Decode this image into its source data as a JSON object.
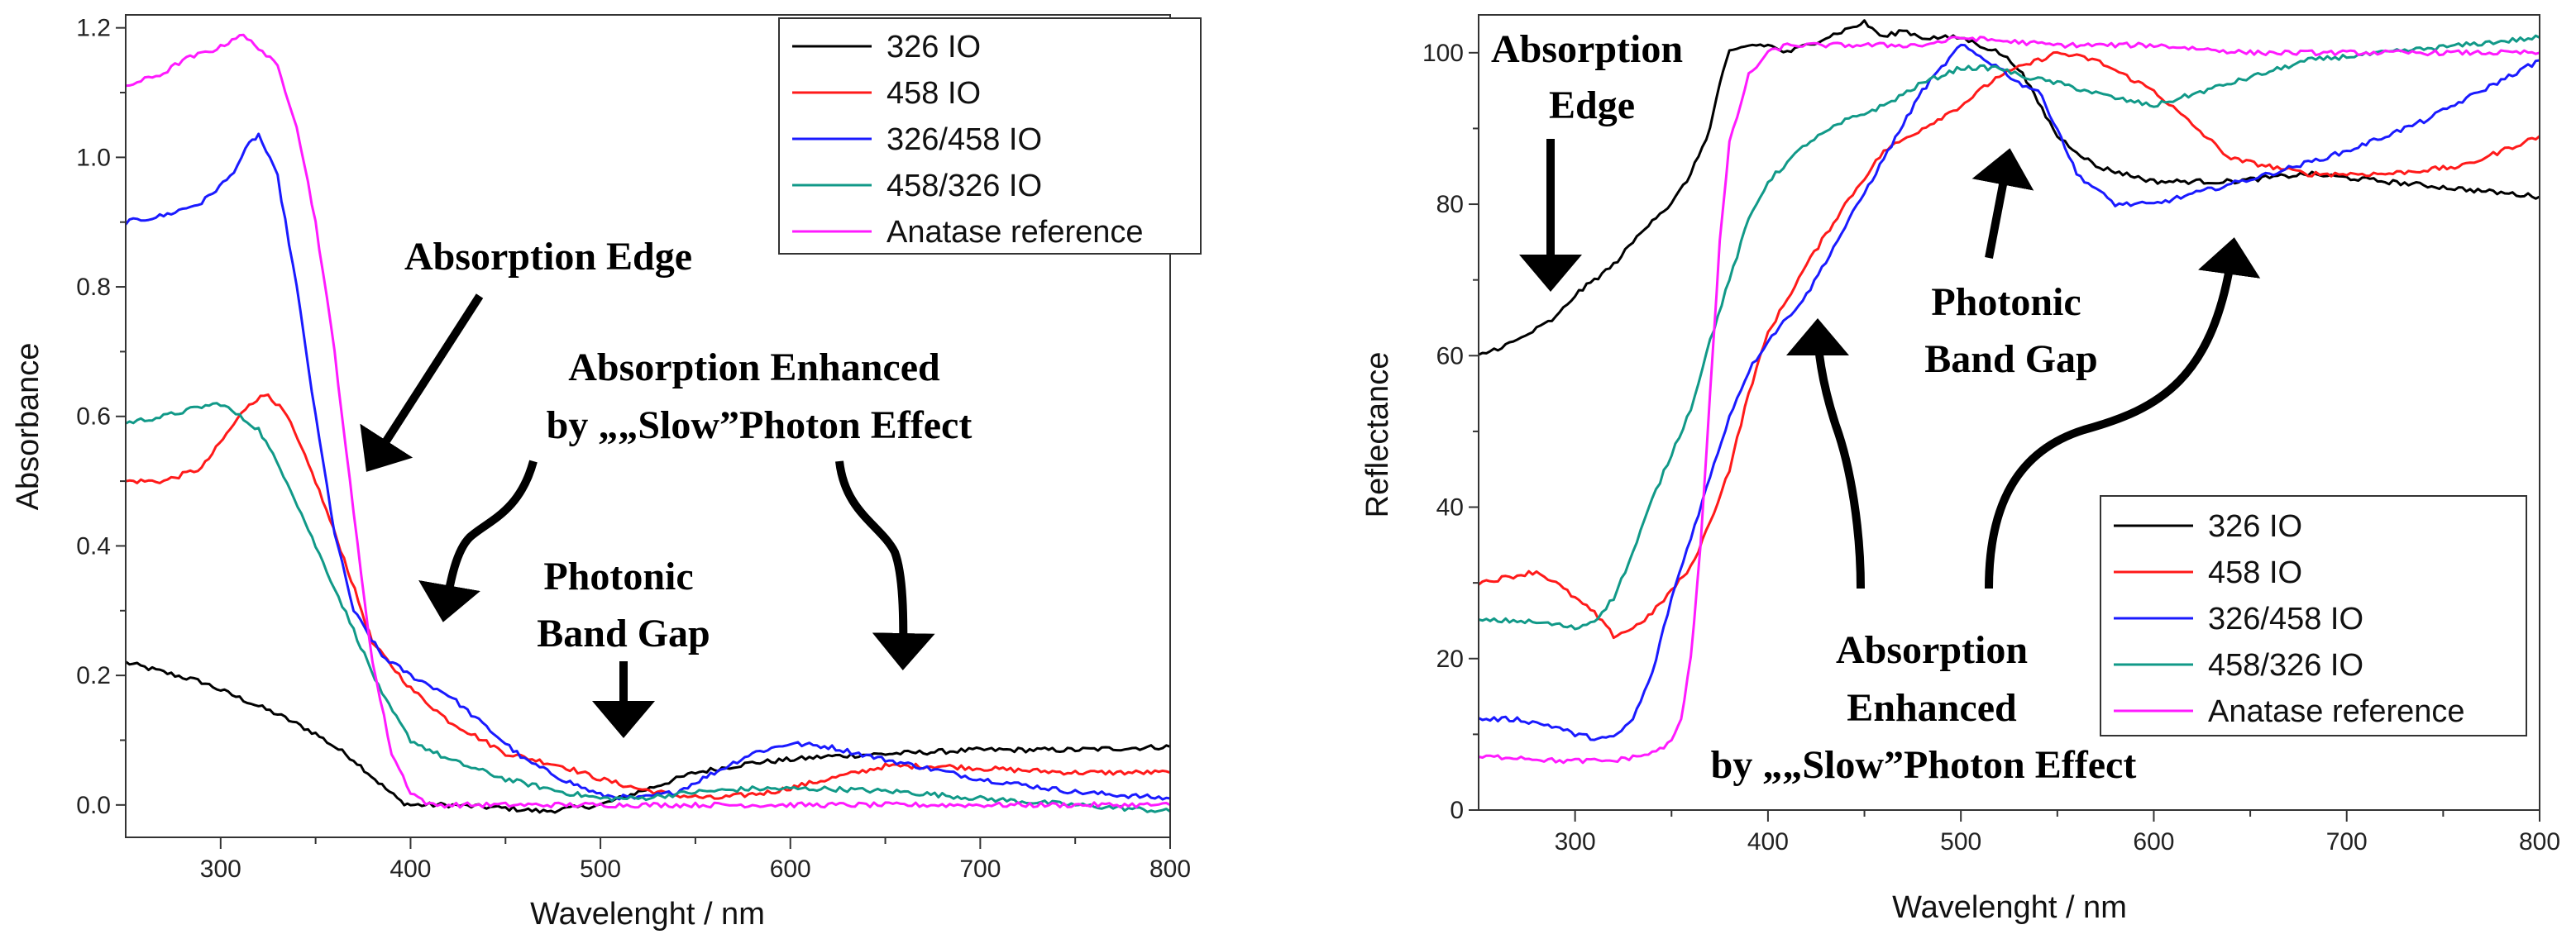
{
  "chart_data": [
    {
      "type": "line",
      "title": "",
      "xlabel": "Wavelenght / nm",
      "ylabel": "Absorbance",
      "xlim": [
        250,
        800
      ],
      "ylim": [
        -0.05,
        1.22
      ],
      "xticks": [
        300,
        400,
        500,
        600,
        700,
        800
      ],
      "yticks": [
        0.0,
        0.2,
        0.4,
        0.6,
        0.8,
        1.0,
        1.2
      ],
      "ytick_labels": [
        "0.0",
        "0.2",
        "0.4",
        "0.6",
        "0.8",
        "1.0",
        "1.2"
      ],
      "grid": false,
      "legend_position": "top-right",
      "series": [
        {
          "name": "326 IO",
          "color": "#000000",
          "x": [
            250,
            270,
            290,
            310,
            330,
            350,
            370,
            385,
            395,
            400,
            420,
            450,
            470,
            500,
            510,
            530,
            550,
            580,
            620,
            660,
            700,
            750,
            800
          ],
          "y": [
            0.22,
            0.205,
            0.19,
            0.165,
            0.14,
            0.11,
            0.07,
            0.03,
            0.005,
            0.0,
            0.0,
            -0.005,
            -0.01,
            0.0,
            0.01,
            0.03,
            0.05,
            0.065,
            0.075,
            0.08,
            0.085,
            0.085,
            0.09
          ]
        },
        {
          "name": "458 IO",
          "color": "#ff1a1a",
          "x": [
            250,
            270,
            290,
            305,
            315,
            325,
            335,
            350,
            365,
            380,
            400,
            420,
            450,
            480,
            500,
            520,
            540,
            560,
            590,
            620,
            650,
            680,
            710,
            750,
            800
          ],
          "y": [
            0.5,
            0.5,
            0.52,
            0.58,
            0.62,
            0.635,
            0.6,
            0.5,
            0.38,
            0.25,
            0.18,
            0.13,
            0.08,
            0.06,
            0.04,
            0.025,
            0.015,
            0.01,
            0.02,
            0.04,
            0.06,
            0.06,
            0.055,
            0.05,
            0.05
          ]
        },
        {
          "name": "326/458 IO",
          "color": "#1a1aff",
          "x": [
            250,
            270,
            290,
            305,
            315,
            320,
            330,
            340,
            350,
            360,
            370,
            385,
            400,
            420,
            440,
            460,
            480,
            500,
            520,
            540,
            560,
            580,
            600,
            620,
            650,
            700,
            750,
            800
          ],
          "y": [
            0.9,
            0.91,
            0.93,
            0.97,
            1.02,
            1.035,
            0.97,
            0.8,
            0.6,
            0.42,
            0.3,
            0.23,
            0.2,
            0.17,
            0.12,
            0.07,
            0.04,
            0.015,
            0.01,
            0.02,
            0.05,
            0.08,
            0.095,
            0.09,
            0.07,
            0.04,
            0.02,
            0.01
          ]
        },
        {
          "name": "458/326 IO",
          "color": "#119988",
          "x": [
            250,
            270,
            290,
            300,
            320,
            335,
            350,
            370,
            385,
            400,
            420,
            450,
            480,
            500,
            520,
            550,
            580,
            620,
            660,
            700,
            750,
            800
          ],
          "y": [
            0.59,
            0.6,
            0.615,
            0.62,
            0.58,
            0.5,
            0.4,
            0.27,
            0.17,
            0.1,
            0.07,
            0.04,
            0.02,
            0.01,
            0.01,
            0.02,
            0.025,
            0.025,
            0.02,
            0.01,
            0.0,
            -0.01
          ]
        },
        {
          "name": "Anatase reference",
          "color": "#ff1aff",
          "x": [
            250,
            260,
            270,
            280,
            290,
            300,
            310,
            320,
            330,
            340,
            350,
            360,
            370,
            380,
            390,
            400,
            410,
            430,
            460,
            500,
            550,
            600,
            650,
            700,
            750,
            800
          ],
          "y": [
            1.11,
            1.12,
            1.13,
            1.15,
            1.16,
            1.17,
            1.19,
            1.17,
            1.14,
            1.05,
            0.9,
            0.7,
            0.45,
            0.22,
            0.08,
            0.02,
            0.0,
            0.0,
            0.0,
            0.0,
            0.0,
            0.0,
            0.0,
            0.0,
            0.0,
            0.0
          ]
        }
      ],
      "annotations": [
        {
          "lines": [
            "Absorption Edge"
          ]
        },
        {
          "lines": [
            "Absorption Enhanced",
            "by „„Slow”Photon Effect"
          ]
        },
        {
          "lines": [
            "Photonic",
            "Band Gap"
          ]
        }
      ]
    },
    {
      "type": "line",
      "title": "",
      "xlabel": "Wavelenght / nm",
      "ylabel": "Reflectance",
      "xlim": [
        250,
        800
      ],
      "ylim": [
        0,
        105
      ],
      "xticks": [
        300,
        400,
        500,
        600,
        700,
        800
      ],
      "yticks": [
        0,
        20,
        40,
        60,
        80,
        100
      ],
      "ytick_labels": [
        "0",
        "20",
        "40",
        "60",
        "80",
        "100"
      ],
      "grid": false,
      "legend_position": "bottom-right",
      "series": [
        {
          "name": "326 IO",
          "color": "#000000",
          "x": [
            250,
            270,
            290,
            300,
            320,
            340,
            350,
            360,
            370,
            375,
            380,
            390,
            400,
            410,
            420,
            440,
            450,
            460,
            470,
            480,
            500,
            520,
            530,
            550,
            570,
            600,
            640,
            680,
            720,
            760,
            800
          ],
          "y": [
            60,
            62,
            65,
            68,
            72,
            78,
            80,
            84,
            90,
            96,
            100,
            101,
            101,
            100,
            101,
            103,
            104,
            102,
            103,
            102,
            102,
            100,
            98,
            89,
            85,
            83,
            83,
            84,
            83,
            82,
            81
          ]
        },
        {
          "name": "458 IO",
          "color": "#ff1a1a",
          "x": [
            250,
            270,
            280,
            290,
            300,
            310,
            320,
            330,
            340,
            350,
            360,
            370,
            380,
            390,
            400,
            420,
            440,
            460,
            480,
            500,
            520,
            530,
            540,
            550,
            570,
            600,
            640,
            680,
            720,
            760,
            800
          ],
          "y": [
            30,
            31,
            31.5,
            30,
            28,
            26,
            23,
            24,
            26,
            29,
            32,
            38,
            45,
            55,
            63,
            72,
            80,
            87,
            90,
            93,
            97,
            98,
            99,
            100,
            99,
            95,
            86,
            84,
            84,
            85,
            89
          ]
        },
        {
          "name": "326/458 IO",
          "color": "#1a1aff",
          "x": [
            250,
            270,
            290,
            300,
            310,
            320,
            330,
            340,
            350,
            360,
            370,
            380,
            390,
            400,
            420,
            440,
            460,
            480,
            500,
            520,
            530,
            540,
            550,
            560,
            580,
            600,
            630,
            660,
            700,
            740,
            770,
            800
          ],
          "y": [
            12,
            12,
            11,
            10,
            9.5,
            9.5,
            12,
            18,
            28,
            36,
            44,
            52,
            58,
            62,
            68,
            77,
            86,
            95,
            101,
            98,
            96,
            95,
            90,
            84,
            80,
            80,
            82,
            84,
            87,
            91,
            95,
            99
          ]
        },
        {
          "name": "458/326 IO",
          "color": "#119988",
          "x": [
            250,
            270,
            290,
            300,
            310,
            320,
            330,
            340,
            350,
            360,
            370,
            380,
            390,
            400,
            420,
            440,
            460,
            480,
            500,
            520,
            530,
            550,
            580,
            600,
            640,
            680,
            720,
            760,
            800
          ],
          "y": [
            25,
            25,
            24.5,
            24,
            25,
            28,
            34,
            41,
            47,
            53,
            62,
            70,
            78,
            83,
            88,
            91,
            93,
            96,
            98,
            98,
            97,
            96,
            94,
            93,
            96,
            99,
            100,
            101,
            102
          ]
        },
        {
          "name": "Anatase reference",
          "color": "#ff1aff",
          "x": [
            250,
            270,
            290,
            300,
            310,
            320,
            330,
            340,
            350,
            355,
            360,
            365,
            370,
            375,
            380,
            390,
            400,
            410,
            420,
            440,
            460,
            480,
            500,
            550,
            600,
            650,
            700,
            750,
            800
          ],
          "y": [
            7,
            7,
            6.5,
            6.5,
            6.5,
            6.5,
            7,
            7.5,
            9,
            12,
            20,
            35,
            55,
            75,
            88,
            97,
            100,
            101,
            101,
            101,
            101,
            101,
            102,
            101,
            101,
            100,
            100,
            100,
            100
          ]
        }
      ],
      "annotations": [
        {
          "lines": [
            "Absorption",
            "Edge"
          ]
        },
        {
          "lines": [
            "Photonic",
            "Band Gap"
          ]
        },
        {
          "lines": [
            "Absorption",
            "Enhanced",
            "by „„Slow”Photon Effect"
          ]
        }
      ]
    }
  ]
}
